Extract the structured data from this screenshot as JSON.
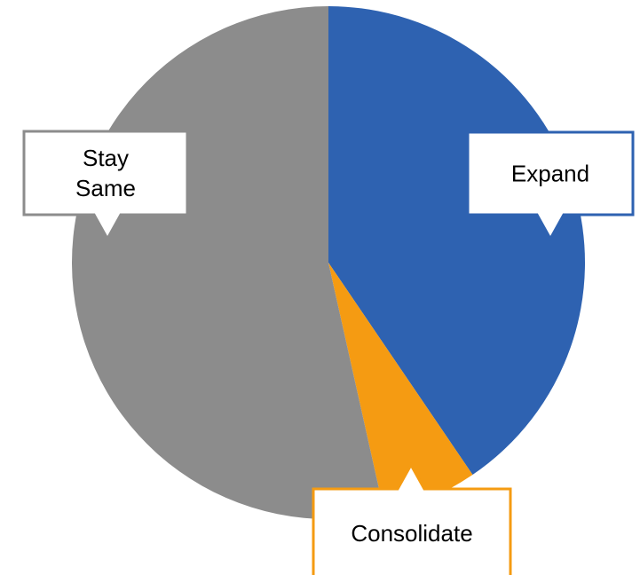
{
  "chart_data": {
    "type": "pie",
    "title": "",
    "legend": "none",
    "start_angle_deg": 0,
    "direction": "clockwise",
    "slices": [
      {
        "label": "Expand",
        "label_lines": [
          "Expand"
        ],
        "value": 40.5,
        "color": "#2E62B1"
      },
      {
        "label": "Consolidate",
        "label_lines": [
          "Consolidate"
        ],
        "value": 6.0,
        "color": "#F59B12"
      },
      {
        "label": "Stay Same",
        "label_lines": [
          "Stay",
          "Same"
        ],
        "value": 53.5,
        "color": "#8C8C8C"
      }
    ]
  }
}
